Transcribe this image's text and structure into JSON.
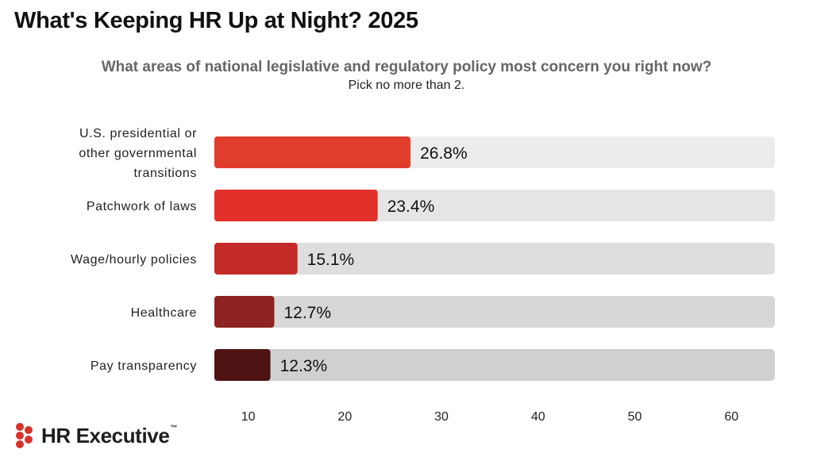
{
  "header": {
    "title": "What's Keeping HR Up at Night? 2025",
    "question": "What areas of national legislative and regulatory policy most concern you right now?",
    "instruction": "Pick no more than 2."
  },
  "chart_data": {
    "type": "bar",
    "orientation": "horizontal",
    "categories": [
      [
        "U.S. presidential or",
        "other governmental",
        "transitions"
      ],
      [
        "Patchwork of laws"
      ],
      [
        "Wage/hourly policies"
      ],
      [
        "Healthcare"
      ],
      [
        "Pay transparency"
      ]
    ],
    "values": [
      26.8,
      23.4,
      15.1,
      12.7,
      12.3
    ],
    "value_labels": [
      "26.8%",
      "23.4%",
      "15.1%",
      "12.7%",
      "12.3%"
    ],
    "bar_colors": [
      "#e03e2d",
      "#e3302a",
      "#c42a26",
      "#8f2222",
      "#4e1212"
    ],
    "track_colors": [
      "#ececec",
      "#e5e5e5",
      "#dedede",
      "#d7d7d7",
      "#d0d0d0"
    ],
    "xticks": [
      10,
      20,
      30,
      40,
      50,
      60
    ],
    "xlim": [
      6.5,
      64.5
    ],
    "grid": false,
    "legend": "none"
  },
  "footer": {
    "logo_text": "HR Executive",
    "logo_mark": "™",
    "logo_color": "#d7322a"
  }
}
